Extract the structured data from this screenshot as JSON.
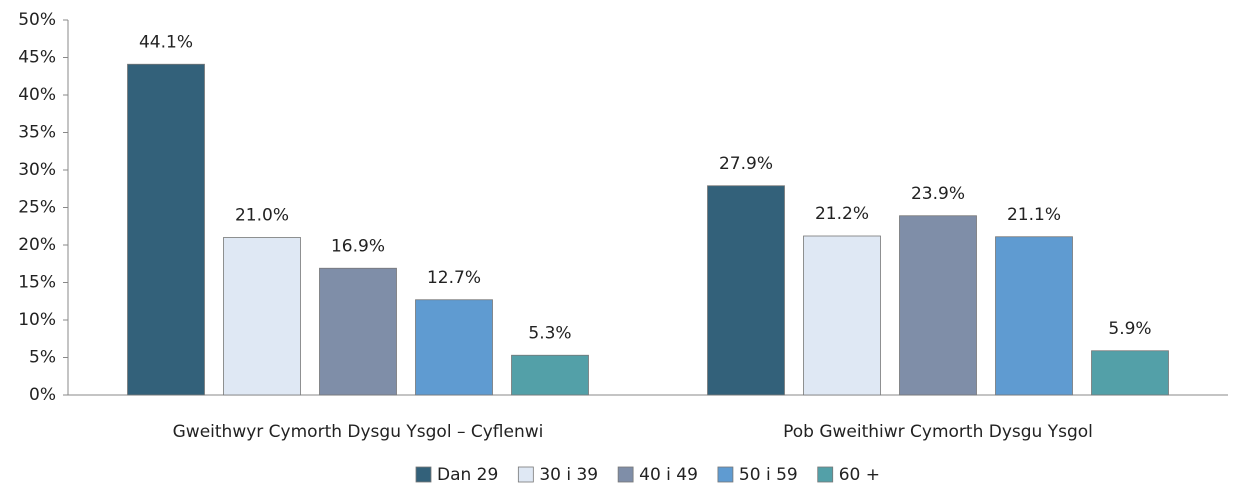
{
  "chart_data": {
    "type": "bar",
    "categories": [
      "Gweithwyr Cymorth Dysgu Ysgol – Cyflenwi",
      "Pob Gweithiwr Cymorth Dysgu Ysgol"
    ],
    "series": [
      {
        "name": "Dan 29",
        "color": "#33617a",
        "values": [
          44.1,
          27.9
        ],
        "value_labels": [
          "44.1%",
          "27.9%"
        ]
      },
      {
        "name": "30 i 39",
        "color": "#dfe8f4",
        "values": [
          21.0,
          21.2
        ],
        "value_labels": [
          "21.0%",
          "21.2%"
        ]
      },
      {
        "name": "40 i 49",
        "color": "#7f8ea8",
        "values": [
          16.9,
          23.9
        ],
        "value_labels": [
          "16.9%",
          "23.9%"
        ]
      },
      {
        "name": "50 i 59",
        "color": "#5f9bd1",
        "values": [
          12.7,
          21.1
        ],
        "value_labels": [
          "12.7%",
          "21.1%"
        ]
      },
      {
        "name": "60 +",
        "color": "#53a0a8",
        "values": [
          5.3,
          5.9
        ],
        "value_labels": [
          "5.3%",
          "5.9%"
        ]
      }
    ],
    "ylim": [
      0,
      50
    ],
    "yticks": [
      {
        "value": 0,
        "label": "0%"
      },
      {
        "value": 5,
        "label": "5%"
      },
      {
        "value": 10,
        "label": "10%"
      },
      {
        "value": 15,
        "label": "15%"
      },
      {
        "value": 20,
        "label": "20%"
      },
      {
        "value": 25,
        "label": "25%"
      },
      {
        "value": 30,
        "label": "30%"
      },
      {
        "value": 35,
        "label": "35%"
      },
      {
        "value": 40,
        "label": "40%"
      },
      {
        "value": 45,
        "label": "45%"
      },
      {
        "value": 50,
        "label": "50%"
      }
    ],
    "legend": "bottom"
  }
}
